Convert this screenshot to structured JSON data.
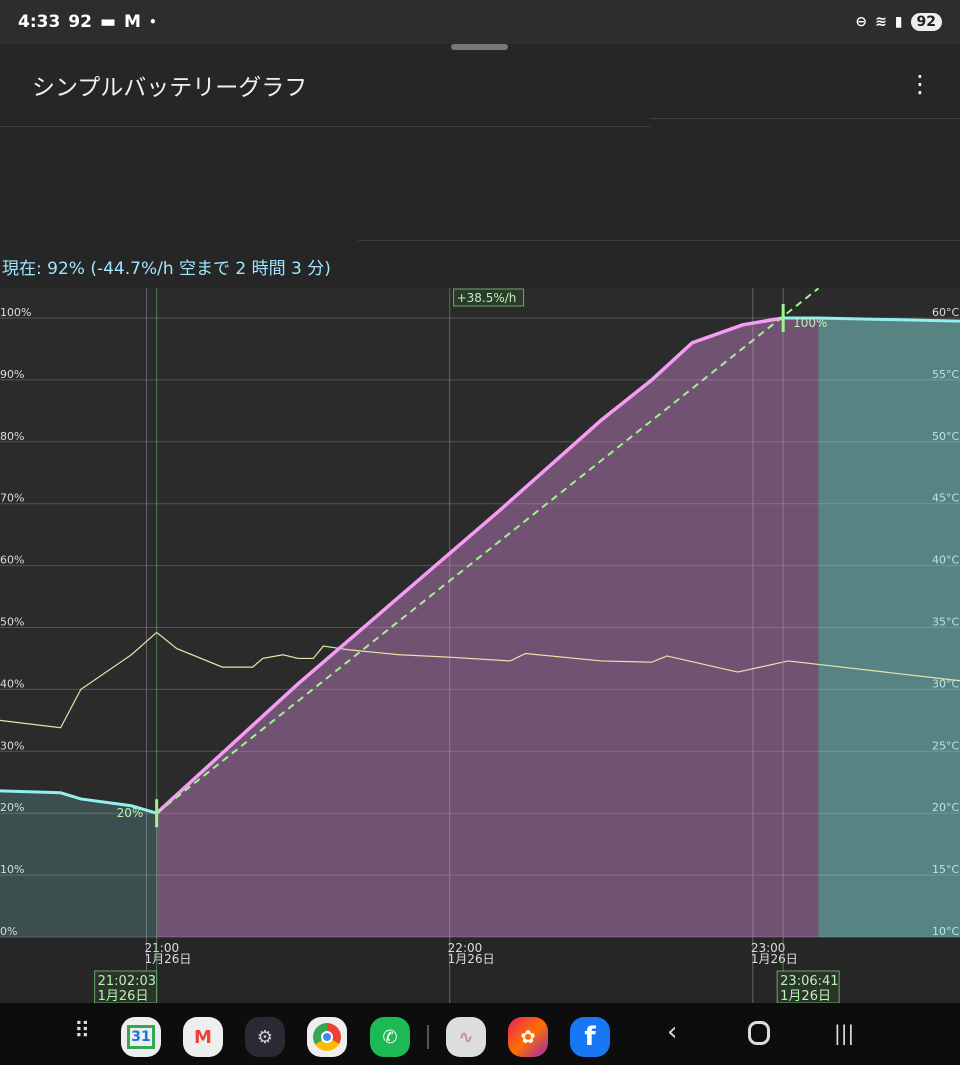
{
  "status_bar": {
    "time": "4:33",
    "notif_battery": "92",
    "battery": "92",
    "icons": [
      "notification-icon",
      "gmail-icon",
      "dot-icon",
      "dnd-icon",
      "wifi-icon",
      "signal-icon",
      "battery-icon"
    ]
  },
  "app": {
    "title": "シンプルバッテリーグラフ",
    "menu_icon": "more-vert-icon"
  },
  "current": "現在: 92%  (-44.7%/h 空まで 2 時間 3 分)",
  "chart_data": {
    "type": "line",
    "x_range": [
      "20:31",
      "23:41"
    ],
    "y_left": {
      "ticks": [
        "0%",
        "10%",
        "20%",
        "30%",
        "40%",
        "50%",
        "60%",
        "70%",
        "80%",
        "90%",
        "100%"
      ],
      "range": [
        0,
        100
      ]
    },
    "y_right": {
      "ticks": [
        "10°C",
        "15°C",
        "20°C",
        "25°C",
        "30°C",
        "35°C",
        "40°C",
        "45°C",
        "50°C",
        "55°C",
        "60°C"
      ],
      "range": [
        10,
        60
      ]
    },
    "x_ticks": [
      {
        "time": "21:00",
        "label": "21:00",
        "date": "1月26日"
      },
      {
        "time": "22:00",
        "label": "22:00",
        "date": "1月26日"
      },
      {
        "time": "23:00",
        "label": "23:00",
        "date": "1月26日"
      }
    ],
    "grid": true,
    "colors": {
      "discharge": "#8ff0f0",
      "charge": "#f59cf5",
      "temperature": "#e6e6a8",
      "trend": "#9cf58c"
    },
    "battery_discharge_before": [
      [
        "20:31",
        23.6
      ],
      [
        "20:43",
        23.3
      ],
      [
        "20:47",
        22.3
      ],
      [
        "20:57",
        21.2
      ],
      [
        "21:02",
        20
      ]
    ],
    "battery_charge": [
      [
        "21:02",
        20
      ],
      [
        "21:30",
        40.9
      ],
      [
        "22:10",
        69
      ],
      [
        "22:30",
        83.5
      ],
      [
        "22:40",
        90
      ],
      [
        "22:48",
        96
      ],
      [
        "22:58",
        98.9
      ],
      [
        "23:06",
        100
      ],
      [
        "23:13",
        100
      ]
    ],
    "battery_after": [
      [
        "23:06",
        100
      ],
      [
        "23:13",
        100
      ],
      [
        "23:41",
        99.5
      ]
    ],
    "temperature": [
      [
        "20:31",
        27.5
      ],
      [
        "20:43",
        26.9
      ],
      [
        "20:47",
        30
      ],
      [
        "20:57",
        32.8
      ],
      [
        "21:02",
        34.6
      ],
      [
        "21:06",
        33.3
      ],
      [
        "21:15",
        31.8
      ],
      [
        "21:21",
        31.8
      ],
      [
        "21:23",
        32.5
      ],
      [
        "21:27",
        32.8
      ],
      [
        "21:30",
        32.5
      ],
      [
        "21:33",
        32.5
      ],
      [
        "21:35",
        33.5
      ],
      [
        "21:40",
        33.2
      ],
      [
        "21:50",
        32.8
      ],
      [
        "22:00",
        32.6
      ],
      [
        "22:12",
        32.3
      ],
      [
        "22:15",
        32.9
      ],
      [
        "22:30",
        32.3
      ],
      [
        "22:40",
        32.2
      ],
      [
        "22:43",
        32.7
      ],
      [
        "22:57",
        31.4
      ],
      [
        "23:07",
        32.3
      ],
      [
        "23:41",
        30.7
      ]
    ],
    "trend": {
      "from": [
        "21:02",
        20
      ],
      "to": [
        "23:13",
        104.8
      ],
      "label": "+38.5%/h"
    },
    "markers": [
      {
        "time": "21:02",
        "value": 20,
        "value_label": "20%",
        "label_time": "21:02:03",
        "label_date": "1月26日"
      },
      {
        "time": "23:06",
        "value": 100,
        "value_label": "100%",
        "label_time": "23:06:41",
        "label_date": "1月26日"
      }
    ]
  },
  "dock": {
    "apps": [
      "apps-grid-icon",
      "calendar-icon",
      "gmail-icon",
      "settings-icon",
      "chrome-icon",
      "phone-icon",
      "battery-graph-icon",
      "gallery-icon",
      "facebook-icon"
    ],
    "calendar_label": "31",
    "facebook_label": "f",
    "nav": [
      "back-icon",
      "home-icon",
      "recents-icon"
    ]
  }
}
